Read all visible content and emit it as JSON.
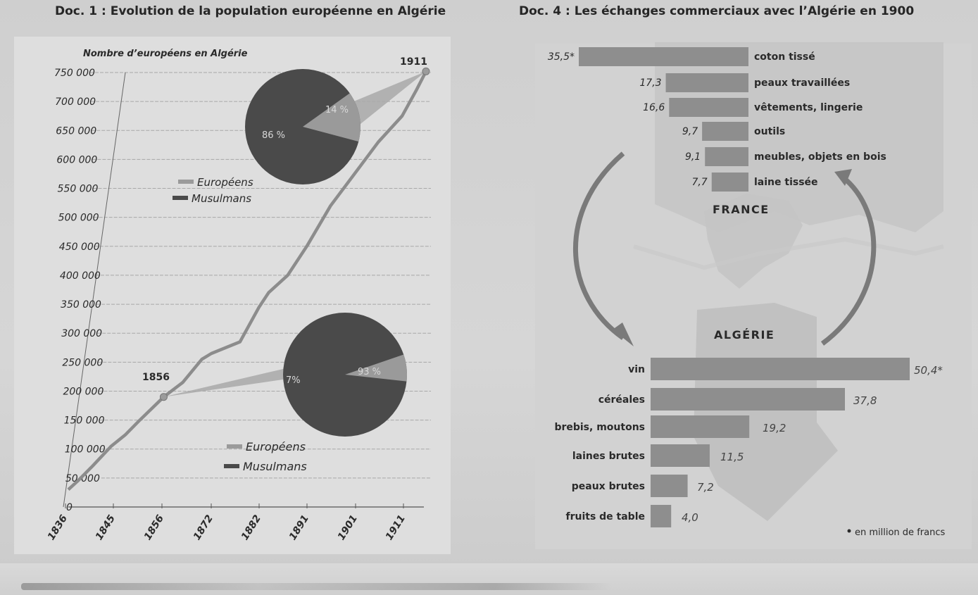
{
  "doc1": {
    "title": "Doc. 1 : Evolution de la population européenne en Algérie"
  },
  "doc4": {
    "title": "Doc. 4 : Les échanges commerciaux avec l’Algérie en 1900"
  },
  "colors": {
    "pie_dark": "#4a4a4a",
    "pie_light": "#9a9a9a",
    "line": "#8c8c8c",
    "bar": "#8e8e8e",
    "map": "#bdbdbd",
    "text": "#2a2a2a"
  },
  "chart_data": [
    {
      "type": "line",
      "title": "Nombre d’européens en Algérie",
      "y_tick_labels": [
        "0",
        "50 000",
        "100 000",
        "150 000",
        "200 000",
        "250 000",
        "300 000",
        "350 000",
        "400 000",
        "450 000",
        "500 000",
        "550 000",
        "600 000",
        "650 000",
        "700 000",
        "750 000"
      ],
      "y_tick_values": [
        0,
        50000,
        100000,
        150000,
        200000,
        250000,
        300000,
        350000,
        400000,
        450000,
        500000,
        550000,
        600000,
        650000,
        700000,
        750000
      ],
      "x_tick_labels": [
        "1836",
        "1845",
        "1856",
        "1872",
        "1882",
        "1891",
        "1901",
        "1911"
      ],
      "ylim": [
        0,
        750000
      ],
      "xlim": [
        1836,
        1911
      ],
      "grid": true,
      "series": [
        {
          "name": "Européens",
          "x": [
            1836,
            1838,
            1841,
            1845,
            1848,
            1851,
            1856,
            1860,
            1864,
            1866,
            1872,
            1876,
            1878,
            1882,
            1886,
            1891,
            1896,
            1901,
            1906,
            1909,
            1911
          ],
          "y": [
            30000,
            45000,
            70000,
            105000,
            125000,
            150000,
            190000,
            215000,
            255000,
            265000,
            285000,
            345000,
            370000,
            400000,
            450000,
            520000,
            575000,
            630000,
            675000,
            720000,
            752000
          ]
        }
      ],
      "highlight_points": [
        {
          "label": "1856",
          "x": 1856,
          "y": 190000
        },
        {
          "label": "1911",
          "x": 1911,
          "y": 752000
        }
      ],
      "pies": [
        {
          "year": "1911",
          "slices": [
            {
              "name": "Européens",
              "value": 14,
              "label": "14 %"
            },
            {
              "name": "Musulmans",
              "value": 86,
              "label": "86 %"
            }
          ],
          "legend": [
            "Européens",
            "Musulmans"
          ]
        },
        {
          "year": "1856",
          "slices": [
            {
              "name": "Européens",
              "value": 7,
              "label": "7%"
            },
            {
              "name": "Musulmans",
              "value": 93,
              "label": "93 %"
            }
          ],
          "legend": [
            "Européens",
            "Musulmans"
          ]
        }
      ]
    },
    {
      "type": "bar",
      "title": "Les échanges commerciaux avec l’Algérie en 1900",
      "unit_note": "en million de francs",
      "exports_to_algeria": {
        "label": "FRANCE",
        "categories": [
          "coton tissé",
          "peaux travaillées",
          "vêtements, lingerie",
          "outils",
          "meubles, objets en bois",
          "laine tissée"
        ],
        "values": [
          35.5,
          17.3,
          16.6,
          9.7,
          9.1,
          7.7
        ],
        "value_labels": [
          "35,5*",
          "17,3",
          "16,6",
          "9,7",
          "9,1",
          "7,7"
        ]
      },
      "exports_to_france": {
        "label": "ALGÉRIE",
        "categories": [
          "vin",
          "céréales",
          "brebis, moutons",
          "laines brutes",
          "peaux brutes",
          "fruits de table"
        ],
        "values": [
          50.4,
          37.8,
          19.2,
          11.5,
          7.2,
          4.0
        ],
        "value_labels": [
          "50,4*",
          "37,8",
          "19,2",
          "11,5",
          "7,2",
          "4,0"
        ]
      }
    }
  ]
}
